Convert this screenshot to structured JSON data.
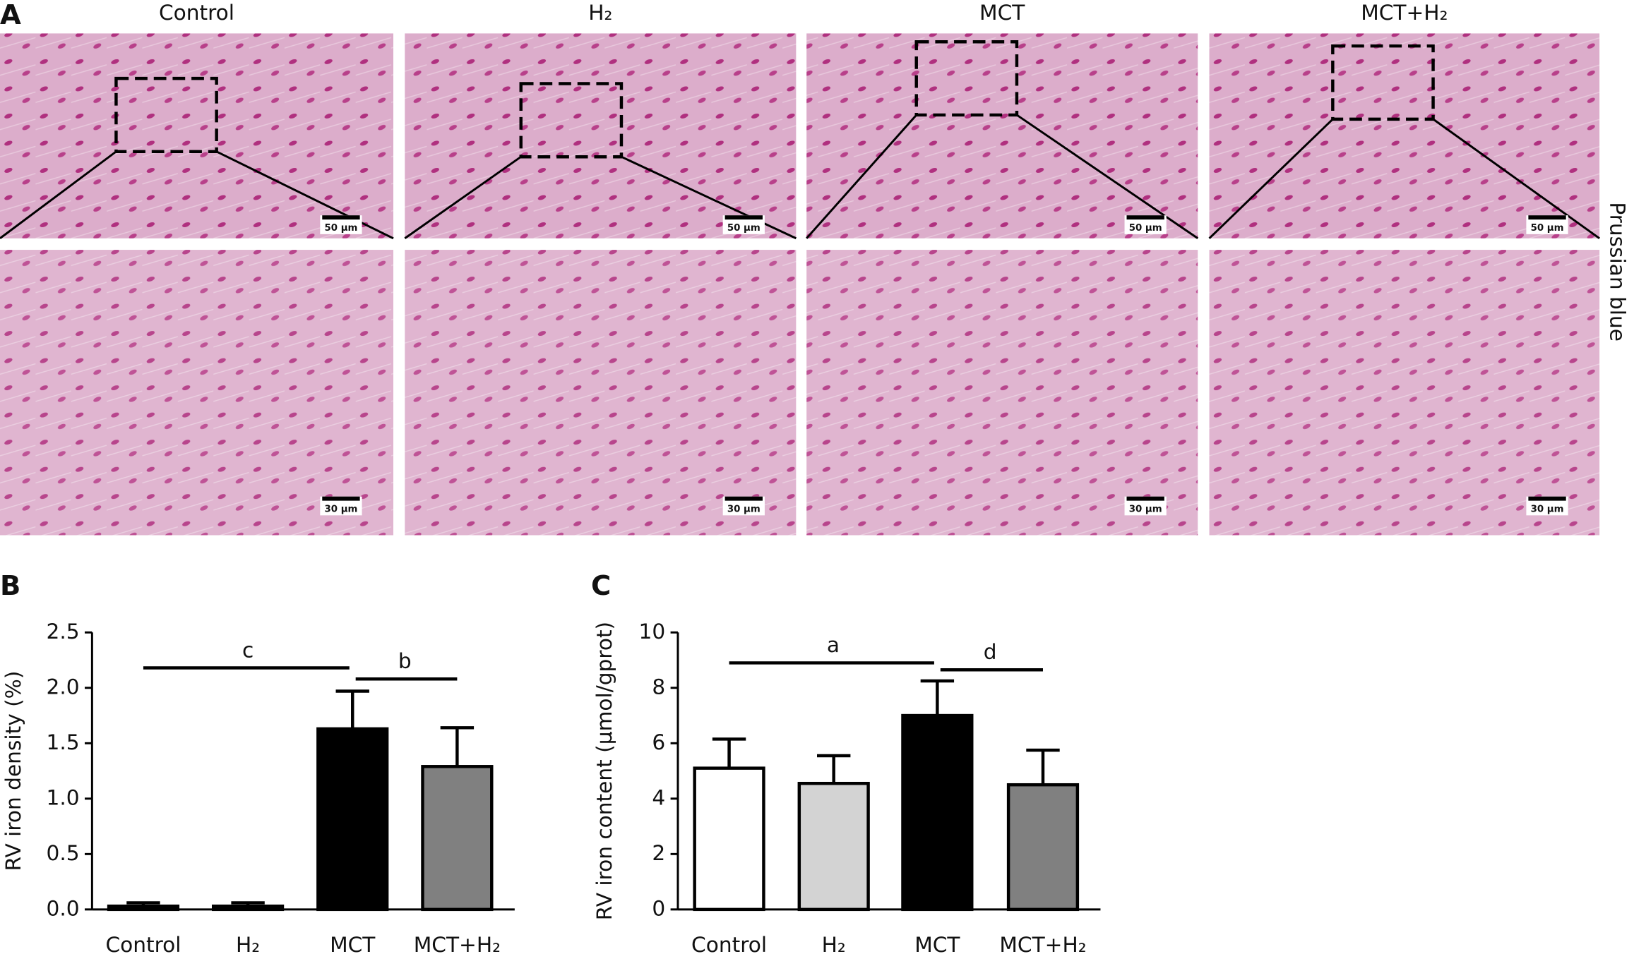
{
  "panel_a": {
    "label": "A",
    "columns": [
      "Control",
      "H₂",
      "MCT",
      "MCT+H₂"
    ],
    "row_label": "Prussian blue",
    "scale_bars": [
      "50 μm",
      "30 μm"
    ]
  },
  "chart_data": [
    {
      "type": "bar",
      "panel_label": "B",
      "ylabel": "RV iron density (%)",
      "categories": [
        "Control",
        "H₂",
        "MCT",
        "MCT+H₂"
      ],
      "values": [
        0.03,
        0.03,
        1.63,
        1.29
      ],
      "errors": [
        0.03,
        0.03,
        0.34,
        0.35
      ],
      "colors": [
        "#000000",
        "#000000",
        "#000000",
        "#808080"
      ],
      "ylim": [
        0,
        2.5
      ],
      "yticks": [
        {
          "value": 0,
          "label": "0.0"
        },
        0.5,
        {
          "value": 1,
          "label": "1.0"
        },
        1.5,
        {
          "value": 2,
          "label": "2.0"
        },
        2.5
      ],
      "annotations": [
        {
          "text": "c",
          "from": "Control",
          "to": "MCT",
          "y": 2.18
        },
        {
          "text": "b",
          "from": "MCT",
          "to": "MCT+H₂",
          "y": 2.08
        }
      ]
    },
    {
      "type": "bar",
      "panel_label": "C",
      "ylabel": "RV iron content (μmol/gprot)",
      "categories": [
        "Control",
        "H₂",
        "MCT",
        "MCT+H₂"
      ],
      "values": [
        5.1,
        4.55,
        7.0,
        4.5
      ],
      "errors": [
        1.05,
        1.0,
        1.25,
        1.25
      ],
      "colors": [
        "#ffffff",
        "#d3d3d3",
        "#000000",
        "#808080"
      ],
      "ylim": [
        0,
        10
      ],
      "yticks": [
        0,
        2,
        4,
        6,
        8,
        10
      ],
      "annotations": [
        {
          "text": "a",
          "from": "Control",
          "to": "MCT",
          "y": 8.9
        },
        {
          "text": "d",
          "from": "MCT",
          "to": "MCT+H₂",
          "y": 8.65
        }
      ]
    }
  ]
}
